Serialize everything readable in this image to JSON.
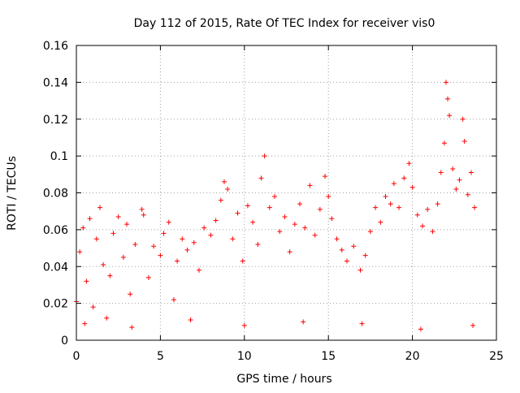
{
  "chart_data": {
    "type": "scatter",
    "title": "Day 112 of 2015, Rate Of TEC Index for receiver vis0",
    "xlabel": "GPS time / hours",
    "ylabel": "ROTI / TECUs",
    "xlim": [
      0,
      25
    ],
    "ylim": [
      0,
      0.16
    ],
    "x_ticks": [
      0,
      5,
      10,
      15,
      20,
      25
    ],
    "y_ticks": [
      0,
      0.02,
      0.04,
      0.06,
      0.08,
      0.1,
      0.12,
      0.14,
      0.16
    ],
    "x_tick_labels": [
      "0",
      "5",
      "10",
      "15",
      "20",
      "25"
    ],
    "y_tick_labels": [
      "0",
      "0.02",
      "0.04",
      "0.06",
      "0.08",
      "0.1",
      "0.12",
      "0.14",
      "0.16"
    ],
    "grid": true,
    "marker": "+",
    "color": "#ff0000",
    "series": [
      {
        "points": [
          [
            0.0,
            0.021
          ],
          [
            0.2,
            0.048
          ],
          [
            0.4,
            0.061
          ],
          [
            0.6,
            0.032
          ],
          [
            0.8,
            0.066
          ],
          [
            1.0,
            0.018
          ],
          [
            1.2,
            0.055
          ],
          [
            1.4,
            0.072
          ],
          [
            1.6,
            0.041
          ],
          [
            1.8,
            0.012
          ],
          [
            2.0,
            0.035
          ],
          [
            2.2,
            0.058
          ],
          [
            2.5,
            0.067
          ],
          [
            2.8,
            0.045
          ],
          [
            3.0,
            0.063
          ],
          [
            3.2,
            0.025
          ],
          [
            3.5,
            0.052
          ],
          [
            3.9,
            0.071
          ],
          [
            4.0,
            0.068
          ],
          [
            4.3,
            0.034
          ],
          [
            4.6,
            0.051
          ],
          [
            5.0,
            0.046
          ],
          [
            5.2,
            0.058
          ],
          [
            5.5,
            0.064
          ],
          [
            5.8,
            0.022
          ],
          [
            6.0,
            0.043
          ],
          [
            6.3,
            0.055
          ],
          [
            6.6,
            0.049
          ],
          [
            7.0,
            0.053
          ],
          [
            7.3,
            0.038
          ],
          [
            7.6,
            0.061
          ],
          [
            8.0,
            0.057
          ],
          [
            8.3,
            0.065
          ],
          [
            8.6,
            0.076
          ],
          [
            8.8,
            0.086
          ],
          [
            9.0,
            0.082
          ],
          [
            9.3,
            0.055
          ],
          [
            9.6,
            0.069
          ],
          [
            9.9,
            0.043
          ],
          [
            10.2,
            0.073
          ],
          [
            10.5,
            0.064
          ],
          [
            10.8,
            0.052
          ],
          [
            11.0,
            0.088
          ],
          [
            11.2,
            0.1
          ],
          [
            11.5,
            0.072
          ],
          [
            11.8,
            0.078
          ],
          [
            12.1,
            0.059
          ],
          [
            12.4,
            0.067
          ],
          [
            12.7,
            0.048
          ],
          [
            13.0,
            0.063
          ],
          [
            13.3,
            0.074
          ],
          [
            13.6,
            0.061
          ],
          [
            13.9,
            0.084
          ],
          [
            14.2,
            0.057
          ],
          [
            14.5,
            0.071
          ],
          [
            14.8,
            0.089
          ],
          [
            15.0,
            0.078
          ],
          [
            15.2,
            0.066
          ],
          [
            15.5,
            0.055
          ],
          [
            15.8,
            0.049
          ],
          [
            16.1,
            0.043
          ],
          [
            16.5,
            0.051
          ],
          [
            16.9,
            0.038
          ],
          [
            17.2,
            0.046
          ],
          [
            17.5,
            0.059
          ],
          [
            17.8,
            0.072
          ],
          [
            18.1,
            0.064
          ],
          [
            18.4,
            0.078
          ],
          [
            18.7,
            0.074
          ],
          [
            18.9,
            0.085
          ],
          [
            19.2,
            0.072
          ],
          [
            19.5,
            0.088
          ],
          [
            19.8,
            0.096
          ],
          [
            20.0,
            0.083
          ],
          [
            20.3,
            0.068
          ],
          [
            20.6,
            0.062
          ],
          [
            20.9,
            0.071
          ],
          [
            21.2,
            0.059
          ],
          [
            21.5,
            0.074
          ],
          [
            21.7,
            0.091
          ],
          [
            21.9,
            0.107
          ],
          [
            22.0,
            0.14
          ],
          [
            22.1,
            0.131
          ],
          [
            22.2,
            0.122
          ],
          [
            22.4,
            0.093
          ],
          [
            22.6,
            0.082
          ],
          [
            22.8,
            0.087
          ],
          [
            23.0,
            0.12
          ],
          [
            23.1,
            0.108
          ],
          [
            23.3,
            0.079
          ],
          [
            23.5,
            0.091
          ],
          [
            23.7,
            0.072
          ],
          [
            0.5,
            0.009
          ],
          [
            3.3,
            0.007
          ],
          [
            6.8,
            0.011
          ],
          [
            10.0,
            0.008
          ],
          [
            13.5,
            0.01
          ],
          [
            17.0,
            0.009
          ],
          [
            20.5,
            0.006
          ],
          [
            23.6,
            0.008
          ]
        ]
      }
    ]
  }
}
